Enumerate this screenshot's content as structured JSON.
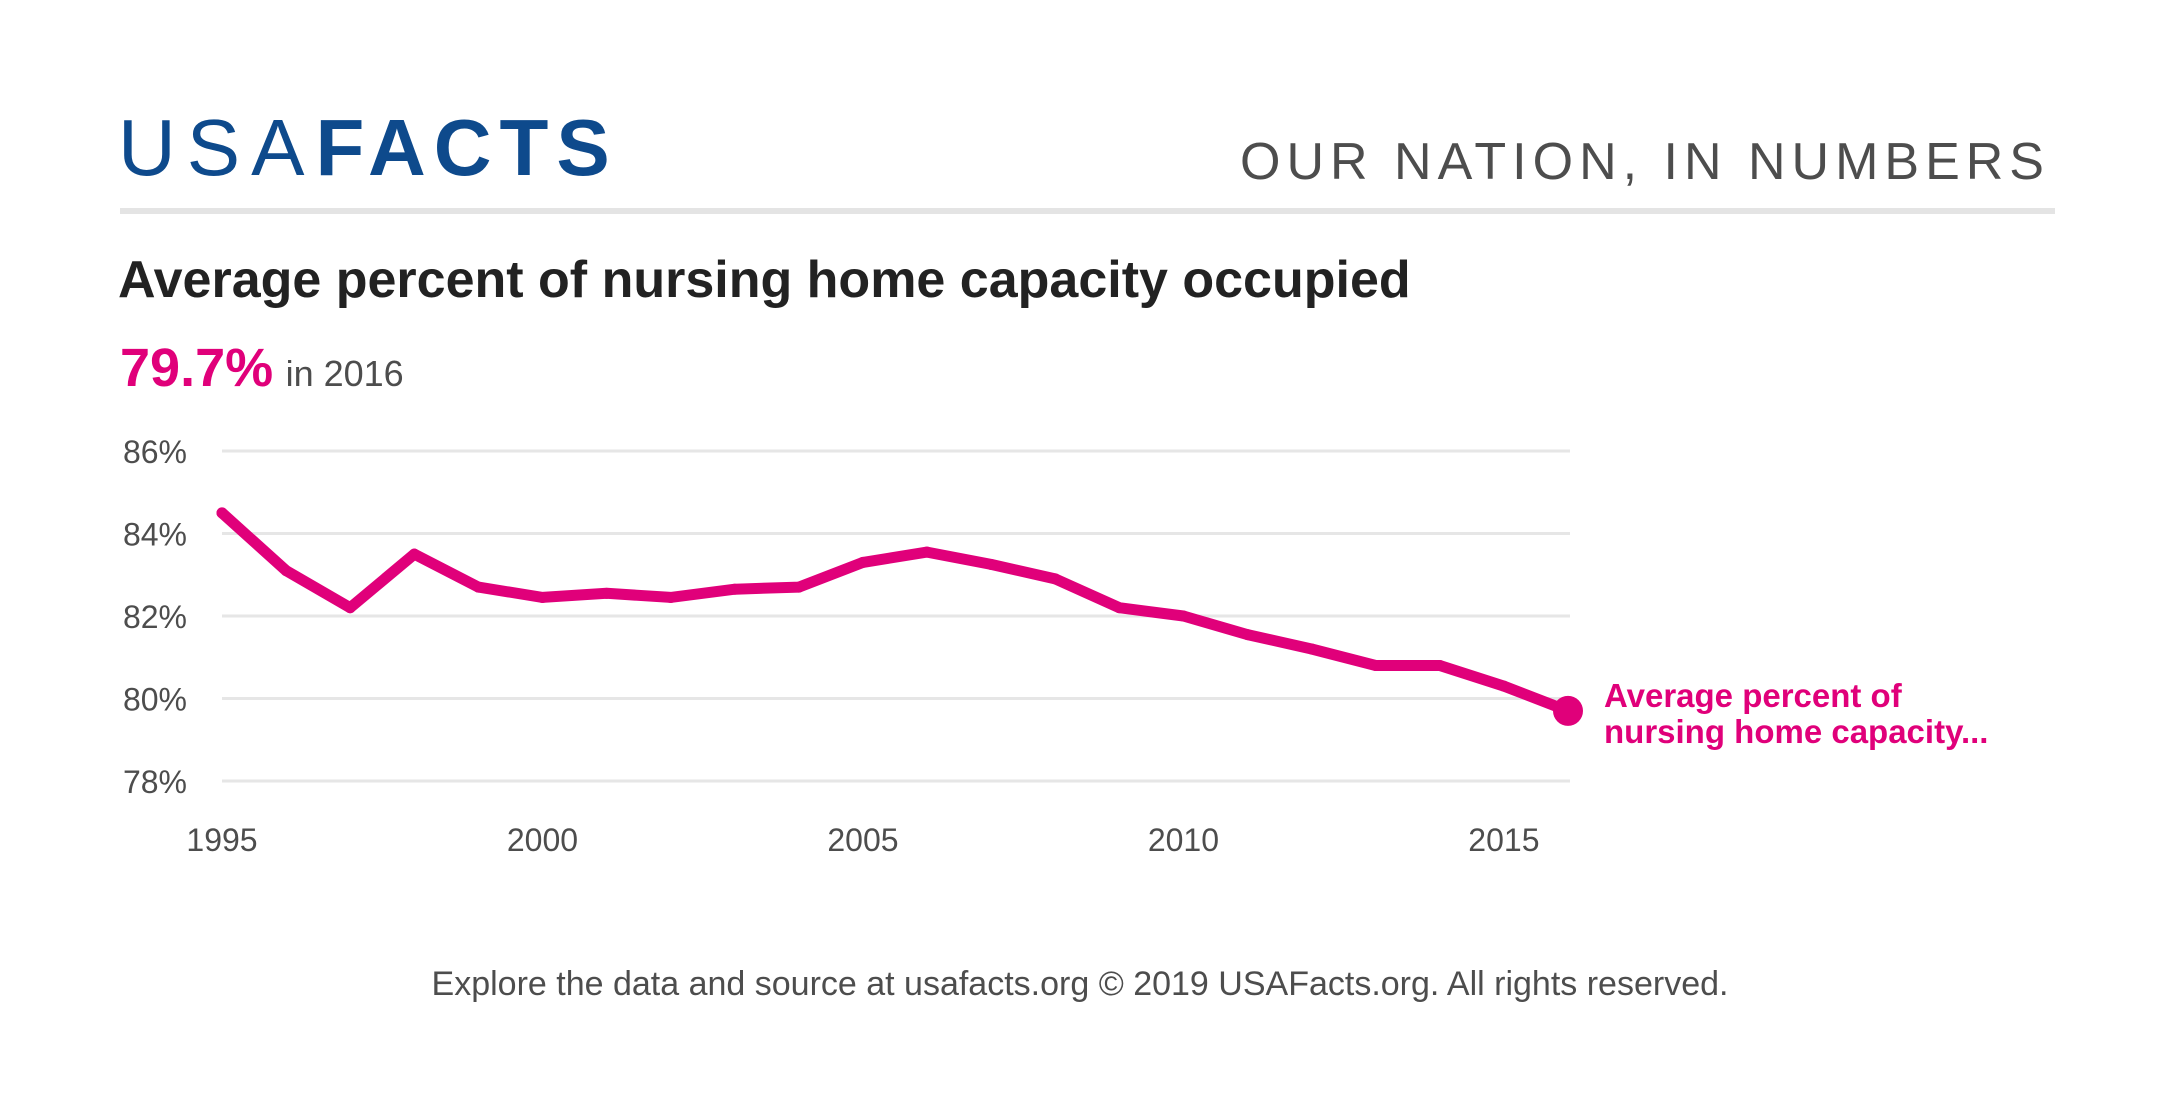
{
  "header": {
    "logo_light": "USA",
    "logo_bold": "FACTS",
    "tagline": "OUR NATION, IN NUMBERS"
  },
  "highlight": {
    "value": "79.7%",
    "text": "in 2016"
  },
  "footer": {
    "text": "Explore the data and source at usafacts.org © 2019 USAFacts.org. All rights reserved."
  },
  "colors": {
    "brand": "#0e4a8c",
    "series": "#e0007a",
    "grid": "#e6e6e6",
    "text": "#4d4d4d"
  },
  "chart_data": {
    "type": "line",
    "title": "Average percent of nursing home capacity occupied",
    "xlabel": "",
    "ylabel": "",
    "x": [
      1995,
      1996,
      1997,
      1998,
      1999,
      2000,
      2001,
      2002,
      2003,
      2004,
      2005,
      2006,
      2007,
      2008,
      2009,
      2010,
      2011,
      2012,
      2013,
      2014,
      2015,
      2016
    ],
    "series": [
      {
        "name": "Average percent of nursing home capacity...",
        "values": [
          84.5,
          83.1,
          82.2,
          83.5,
          82.7,
          82.45,
          82.55,
          82.45,
          82.65,
          82.7,
          83.3,
          83.55,
          83.25,
          82.9,
          82.2,
          82.0,
          81.55,
          81.2,
          80.8,
          80.8,
          80.3,
          79.7
        ]
      }
    ],
    "ylim": [
      78,
      86
    ],
    "yticks": [
      78,
      80,
      82,
      84,
      86
    ],
    "ytick_labels": [
      "78%",
      "80%",
      "82%",
      "84%",
      "86%"
    ],
    "xticks": [
      1995,
      2000,
      2005,
      2010,
      2015
    ],
    "xtick_labels": [
      "1995",
      "2000",
      "2005",
      "2010",
      "2015"
    ],
    "grid": true,
    "legend": "end-of-line label"
  }
}
